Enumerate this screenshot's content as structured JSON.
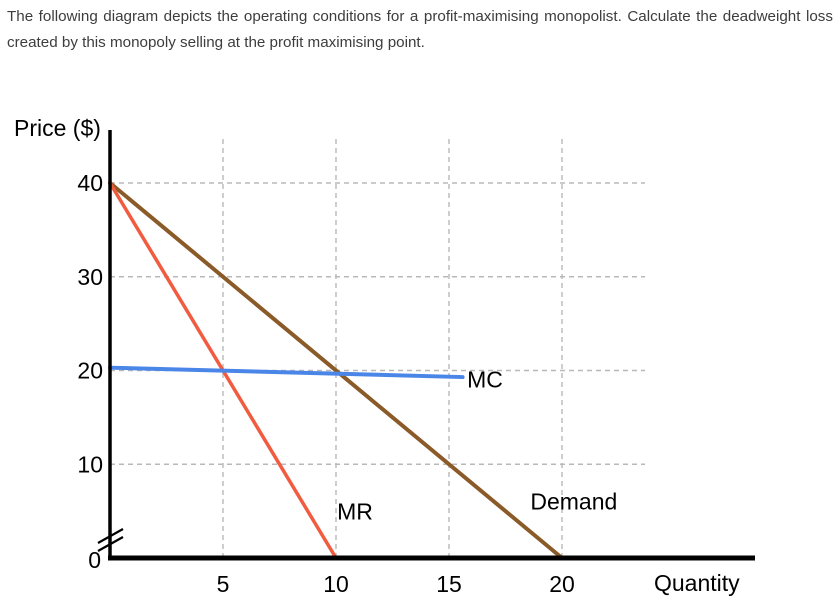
{
  "question": {
    "text": "The following diagram depicts the operating conditions for a profit-maximising monopolist. Calculate the deadweight loss created by this monopoly selling at the profit maximising point."
  },
  "chart_data": {
    "type": "line",
    "title": "",
    "xlabel": "Quantity",
    "ylabel": "Price ($)",
    "xlim": [
      0,
      28
    ],
    "ylim": [
      0,
      45
    ],
    "x_ticks": [
      5,
      10,
      15,
      20
    ],
    "y_ticks": [
      0,
      10,
      20,
      30,
      40
    ],
    "origin_label": "0",
    "grid": "dashed",
    "grid_color": "#b8b8b8",
    "axis_color": "#000000",
    "has_y_axis_break": true,
    "legend_position": "inline-labels",
    "series": [
      {
        "name": "Demand",
        "color": "#8a5a28",
        "stroke_width": 4,
        "points": [
          [
            0,
            40
          ],
          [
            20,
            0
          ]
        ]
      },
      {
        "name": "MR",
        "color": "#f15b40",
        "stroke_width": 3.5,
        "points": [
          [
            0,
            40
          ],
          [
            10,
            0
          ]
        ]
      },
      {
        "name": "MC",
        "color": "#4a86e8",
        "stroke_width": 4,
        "points": [
          [
            0,
            20.3
          ],
          [
            15.6,
            19.3
          ]
        ]
      }
    ],
    "annotations": [
      {
        "text": "MR",
        "x": 10.05,
        "y": 4.1
      },
      {
        "text": "Demand",
        "x": 18.6,
        "y": 5.2
      },
      {
        "text": "MC",
        "x": 15.8,
        "y": 18.2
      }
    ]
  }
}
